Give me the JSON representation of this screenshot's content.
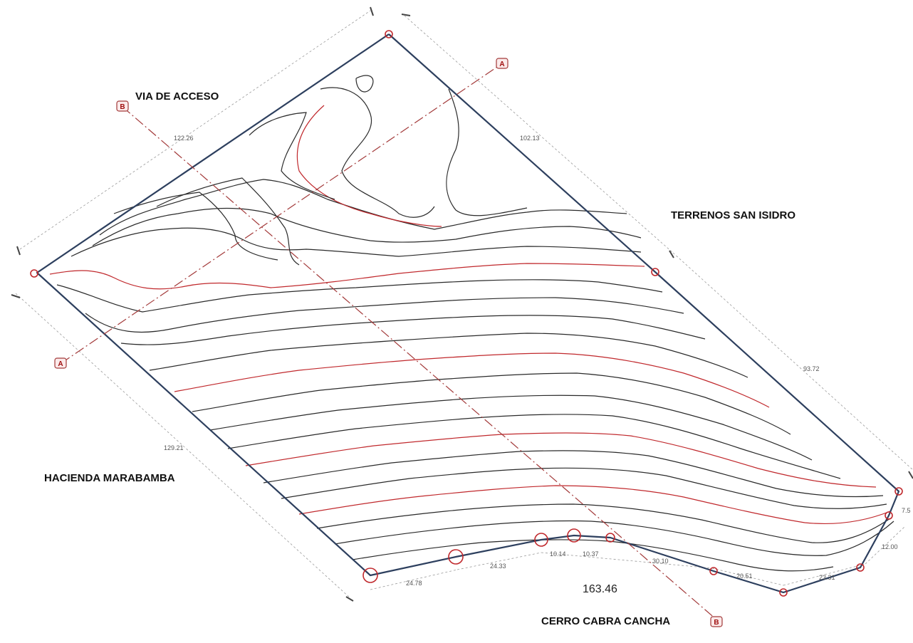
{
  "labels": {
    "via_acceso": "VIA DE ACCESO",
    "terrenos": "TERRENOS SAN ISIDRO",
    "hacienda": "HACIENDA MARABAMBA",
    "cerro": "CERRO CABRA CANCHA",
    "area": "163.46"
  },
  "dimensions": {
    "d1": "122.26",
    "d2": "102.13",
    "d3": "93.72",
    "d4": "129.21",
    "d5": "24.78",
    "d6": "24.33",
    "d7": "10.14",
    "d8": "10.37",
    "d9": "30.10",
    "d10": "20.51",
    "d11": "23.31",
    "d12": "12.00",
    "d13": "7.5"
  },
  "sections": {
    "a": "A",
    "b": "B"
  },
  "colors": {
    "boundary": "#2d3f5e",
    "contour": "#2a2a2a",
    "contour_index": "#c0282c",
    "section_line": "#a33a3a"
  }
}
